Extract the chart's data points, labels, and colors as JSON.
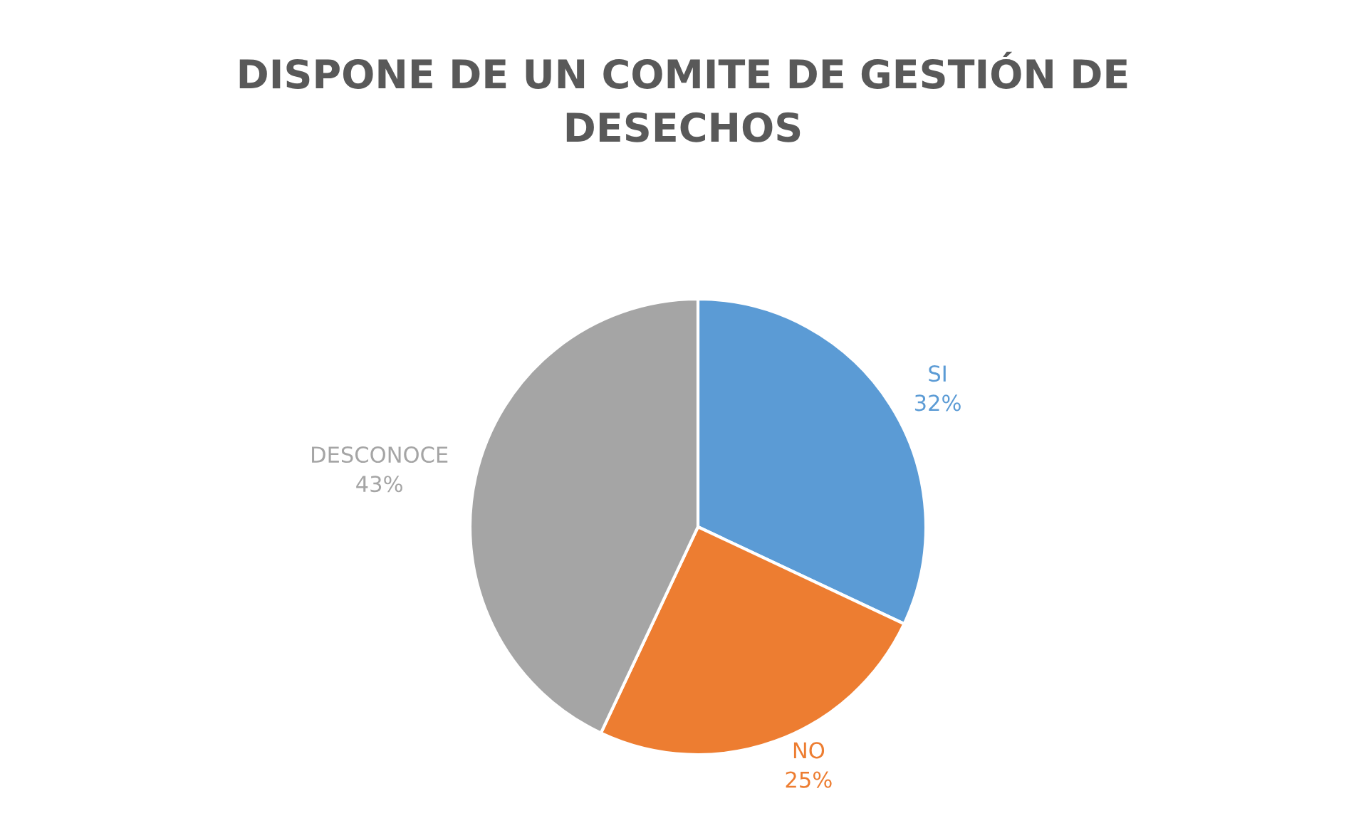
{
  "chart_data": {
    "type": "pie",
    "title": "DISPONE DE UN COMITE DE GESTIÓN DE\nDESECHOS",
    "categories": [
      "SI",
      "NO",
      "DESCONOCE"
    ],
    "values": [
      32,
      25,
      43
    ],
    "colors": [
      "#5b9bd5",
      "#ed7d31",
      "#a5a5a5"
    ],
    "value_labels": [
      "32%",
      "25%",
      "43%"
    ],
    "legend": false
  }
}
